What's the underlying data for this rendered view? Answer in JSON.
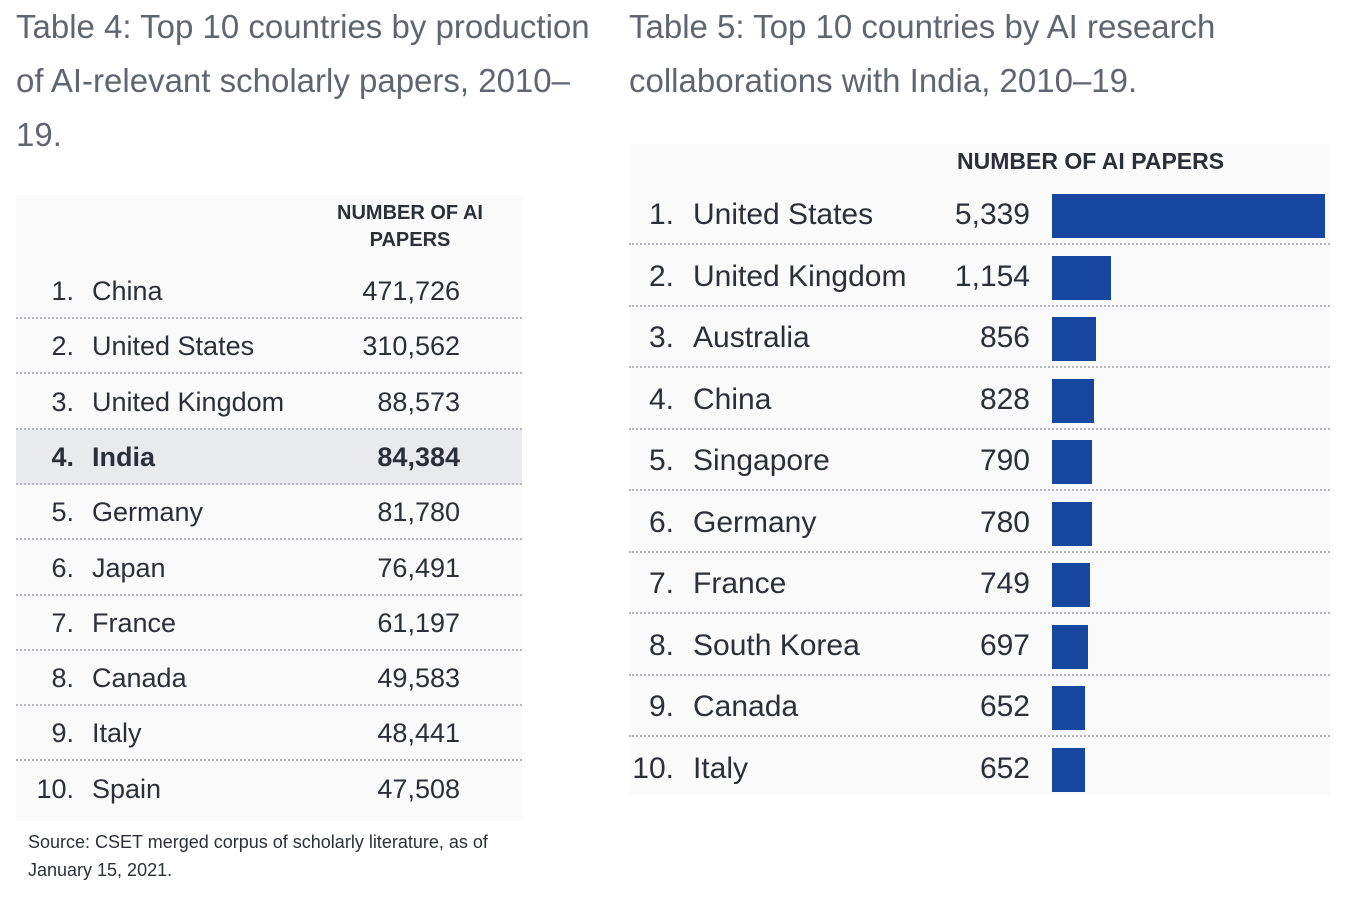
{
  "table4": {
    "title": "Table 4: Top 10 countries by production of AI-relevant scholarly papers, 2010–19.",
    "header": "NUMBER OF AI PAPERS",
    "rows": [
      {
        "rank": "1.",
        "country": "China",
        "value": "471,726"
      },
      {
        "rank": "2.",
        "country": "United States",
        "value": "310,562"
      },
      {
        "rank": "3.",
        "country": "United Kingdom",
        "value": "88,573"
      },
      {
        "rank": "4.",
        "country": "India",
        "value": "84,384",
        "highlight": true
      },
      {
        "rank": "5.",
        "country": "Germany",
        "value": "81,780"
      },
      {
        "rank": "6.",
        "country": "Japan",
        "value": "76,491"
      },
      {
        "rank": "7.",
        "country": "France",
        "value": "61,197"
      },
      {
        "rank": "8.",
        "country": "Canada",
        "value": "49,583"
      },
      {
        "rank": "9.",
        "country": "Italy",
        "value": "48,441"
      },
      {
        "rank": "10.",
        "country": "Spain",
        "value": "47,508"
      }
    ],
    "source": "Source: CSET merged corpus of scholarly literature, as of January 15, 2021."
  },
  "table5": {
    "title": "Table 5: Top 10 countries by AI research collaborations with India, 2010–19.",
    "header": "NUMBER OF AI PAPERS",
    "bar_color": "#17469e",
    "highlight_color": "#e8eaee"
  },
  "chart_data": {
    "type": "bar",
    "title": "Table 5: Top 10 countries by AI research collaborations with India, 2010–19.",
    "ylabel": "NUMBER OF AI PAPERS",
    "categories": [
      "United States",
      "United Kingdom",
      "Australia",
      "China",
      "Singapore",
      "Germany",
      "France",
      "South Korea",
      "Canada",
      "Italy"
    ],
    "ranks": [
      "1.",
      "2.",
      "3.",
      "4.",
      "5.",
      "6.",
      "7.",
      "8.",
      "9.",
      "10."
    ],
    "labels": [
      "5,339",
      "1,154",
      "856",
      "828",
      "790",
      "780",
      "749",
      "697",
      "652",
      "652"
    ],
    "values": [
      5339,
      1154,
      856,
      828,
      790,
      780,
      749,
      697,
      652,
      652
    ],
    "orientation": "horizontal",
    "xlim": [
      0,
      5339
    ]
  }
}
